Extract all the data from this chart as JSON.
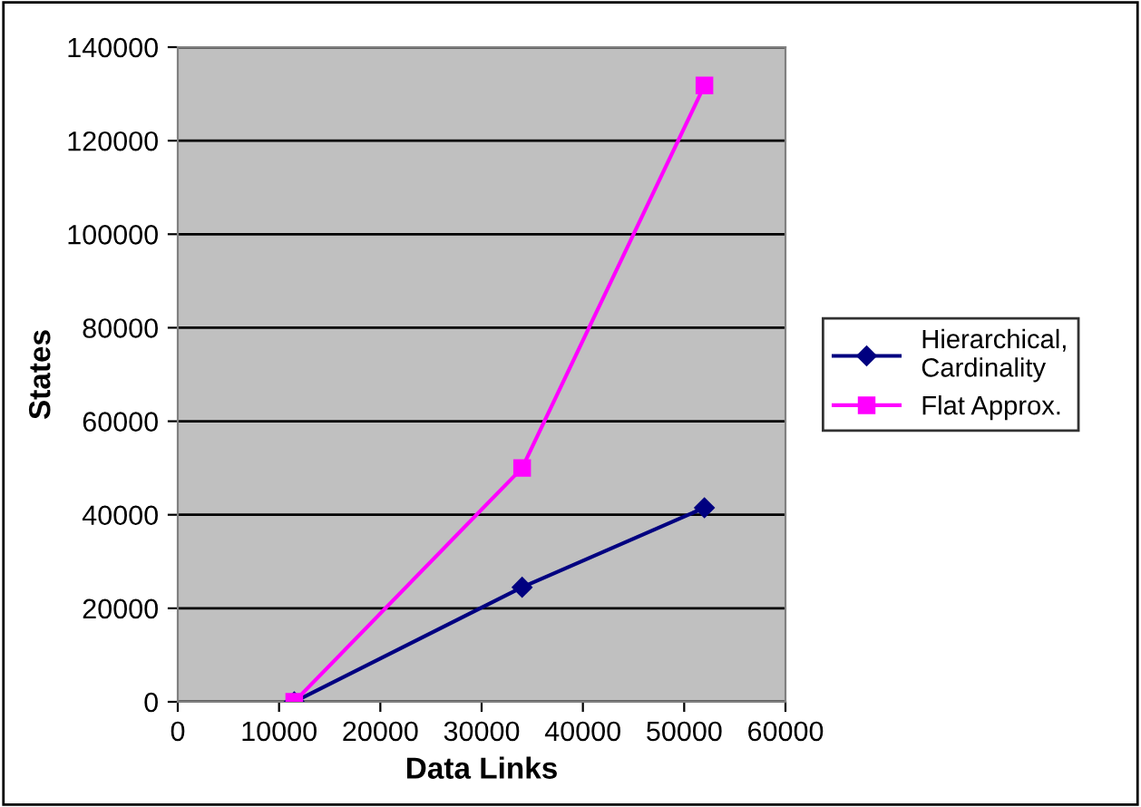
{
  "chart_data": {
    "type": "line",
    "xlabel": "Data Links",
    "ylabel": "States",
    "xlim": [
      0,
      60000
    ],
    "xticks": [
      0,
      10000,
      20000,
      30000,
      40000,
      50000,
      60000
    ],
    "ylim": [
      0,
      140000
    ],
    "yticks": [
      0,
      20000,
      40000,
      60000,
      80000,
      100000,
      120000,
      140000
    ],
    "grid": "y",
    "legend": "right",
    "series": [
      {
        "name": "Hierarchical,\nCardinality",
        "color": "#000080",
        "marker": "diamond",
        "x": [
          11500,
          34000,
          52000
        ],
        "values": [
          0,
          24500,
          41500
        ]
      },
      {
        "name": "Flat Approx.",
        "color": "#ff00ff",
        "marker": "square",
        "x": [
          11500,
          34000,
          52000
        ],
        "values": [
          0,
          50000,
          131800
        ]
      }
    ]
  }
}
